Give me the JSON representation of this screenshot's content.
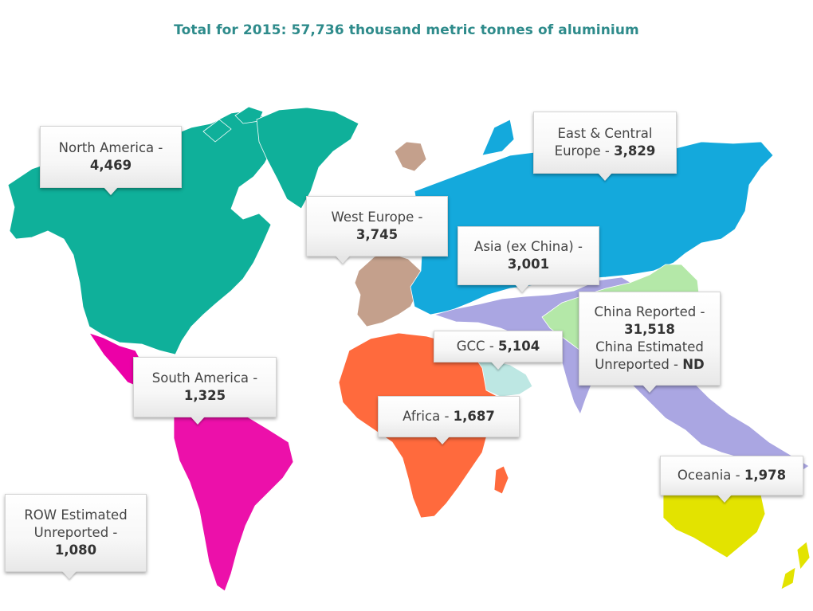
{
  "title": "Total for 2015: 57,736 thousand metric tonnes of aluminium",
  "colors": {
    "north_america": "#0fb09a",
    "mexico_central": "#ec00a7",
    "south_america": "#ec10aa",
    "greenland": "#0fb09a",
    "west_europe": "#c4a08c",
    "east_central_europe": "#14a9dc",
    "asia_ex_china": "#aaa6e2",
    "china": "#b4e8a8",
    "gcc": "#bde7e3",
    "africa": "#ff6a3d",
    "oceania": "#e3e300",
    "title": "#2e8b8b"
  },
  "regions": {
    "north_america": {
      "label": "North America -",
      "value": "4,469"
    },
    "east_central_europe": {
      "label_line1": "East & Central",
      "label_line2": "Europe -",
      "value": "3,829"
    },
    "west_europe": {
      "label": "West Europe -",
      "value": "3,745"
    },
    "asia_ex_china": {
      "label": "Asia (ex China) -",
      "value": "3,001"
    },
    "china": {
      "reported_label": "China Reported -",
      "reported_value": "31,518",
      "estimated_line1": "China Estimated",
      "estimated_line2": "Unreported -",
      "estimated_value": "ND"
    },
    "gcc": {
      "label": "GCC -",
      "value": "5,104"
    },
    "south_america": {
      "label": "South America -",
      "value": "1,325"
    },
    "africa": {
      "label": "Africa -",
      "value": "1,687"
    },
    "oceania": {
      "label": "Oceania -",
      "value": "1,978"
    },
    "row": {
      "label_line1": "ROW Estimated",
      "label_line2": "Unreported -",
      "value": "1,080"
    }
  }
}
